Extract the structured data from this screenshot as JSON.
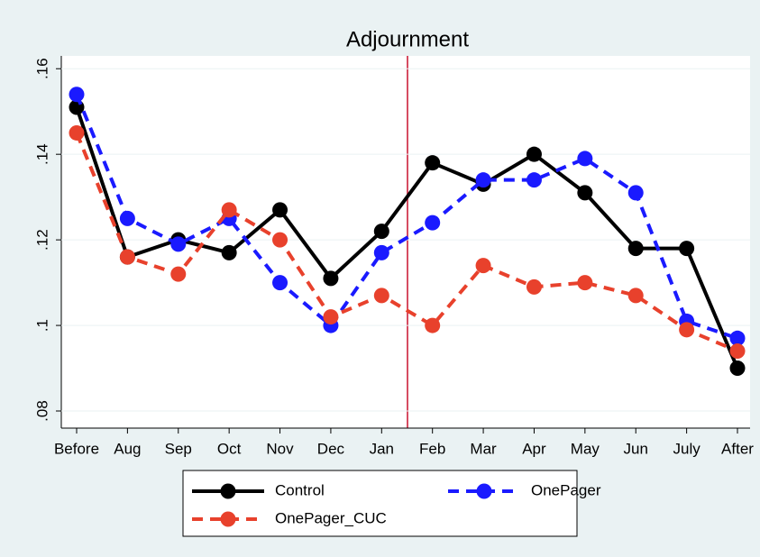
{
  "chart_data": {
    "type": "line",
    "title": "Adjournment",
    "categories": [
      "Before",
      "Aug",
      "Sep",
      "Oct",
      "Nov",
      "Dec",
      "Jan",
      "Feb",
      "Mar",
      "Apr",
      "May",
      "Jun",
      "July",
      "After"
    ],
    "series": [
      {
        "name": "Control",
        "color": "#000000",
        "dashed": false,
        "values": [
          0.151,
          0.116,
          0.12,
          0.117,
          0.127,
          0.111,
          0.122,
          0.138,
          0.133,
          0.14,
          0.131,
          0.118,
          0.118,
          0.09
        ]
      },
      {
        "name": "OnePager",
        "color": "#1a1aff",
        "dashed": true,
        "values": [
          0.154,
          0.125,
          0.119,
          0.125,
          0.11,
          0.1,
          0.117,
          0.124,
          0.134,
          0.134,
          0.139,
          0.131,
          0.101,
          0.097
        ]
      },
      {
        "name": "OnePager_CUC",
        "color": "#e8412c",
        "dashed": true,
        "values": [
          0.145,
          0.116,
          0.112,
          0.127,
          0.12,
          0.102,
          0.107,
          0.1,
          0.114,
          0.109,
          0.11,
          0.107,
          0.099,
          0.094
        ]
      }
    ],
    "ylim": [
      0.076,
      0.163
    ],
    "yticks": [
      {
        "value": 0.08,
        "label": ".08"
      },
      {
        "value": 0.1,
        "label": ".1"
      },
      {
        "value": 0.12,
        "label": ".12"
      },
      {
        "value": 0.14,
        "label": ".14"
      },
      {
        "value": 0.16,
        "label": ".16"
      }
    ],
    "grid": true
  }
}
